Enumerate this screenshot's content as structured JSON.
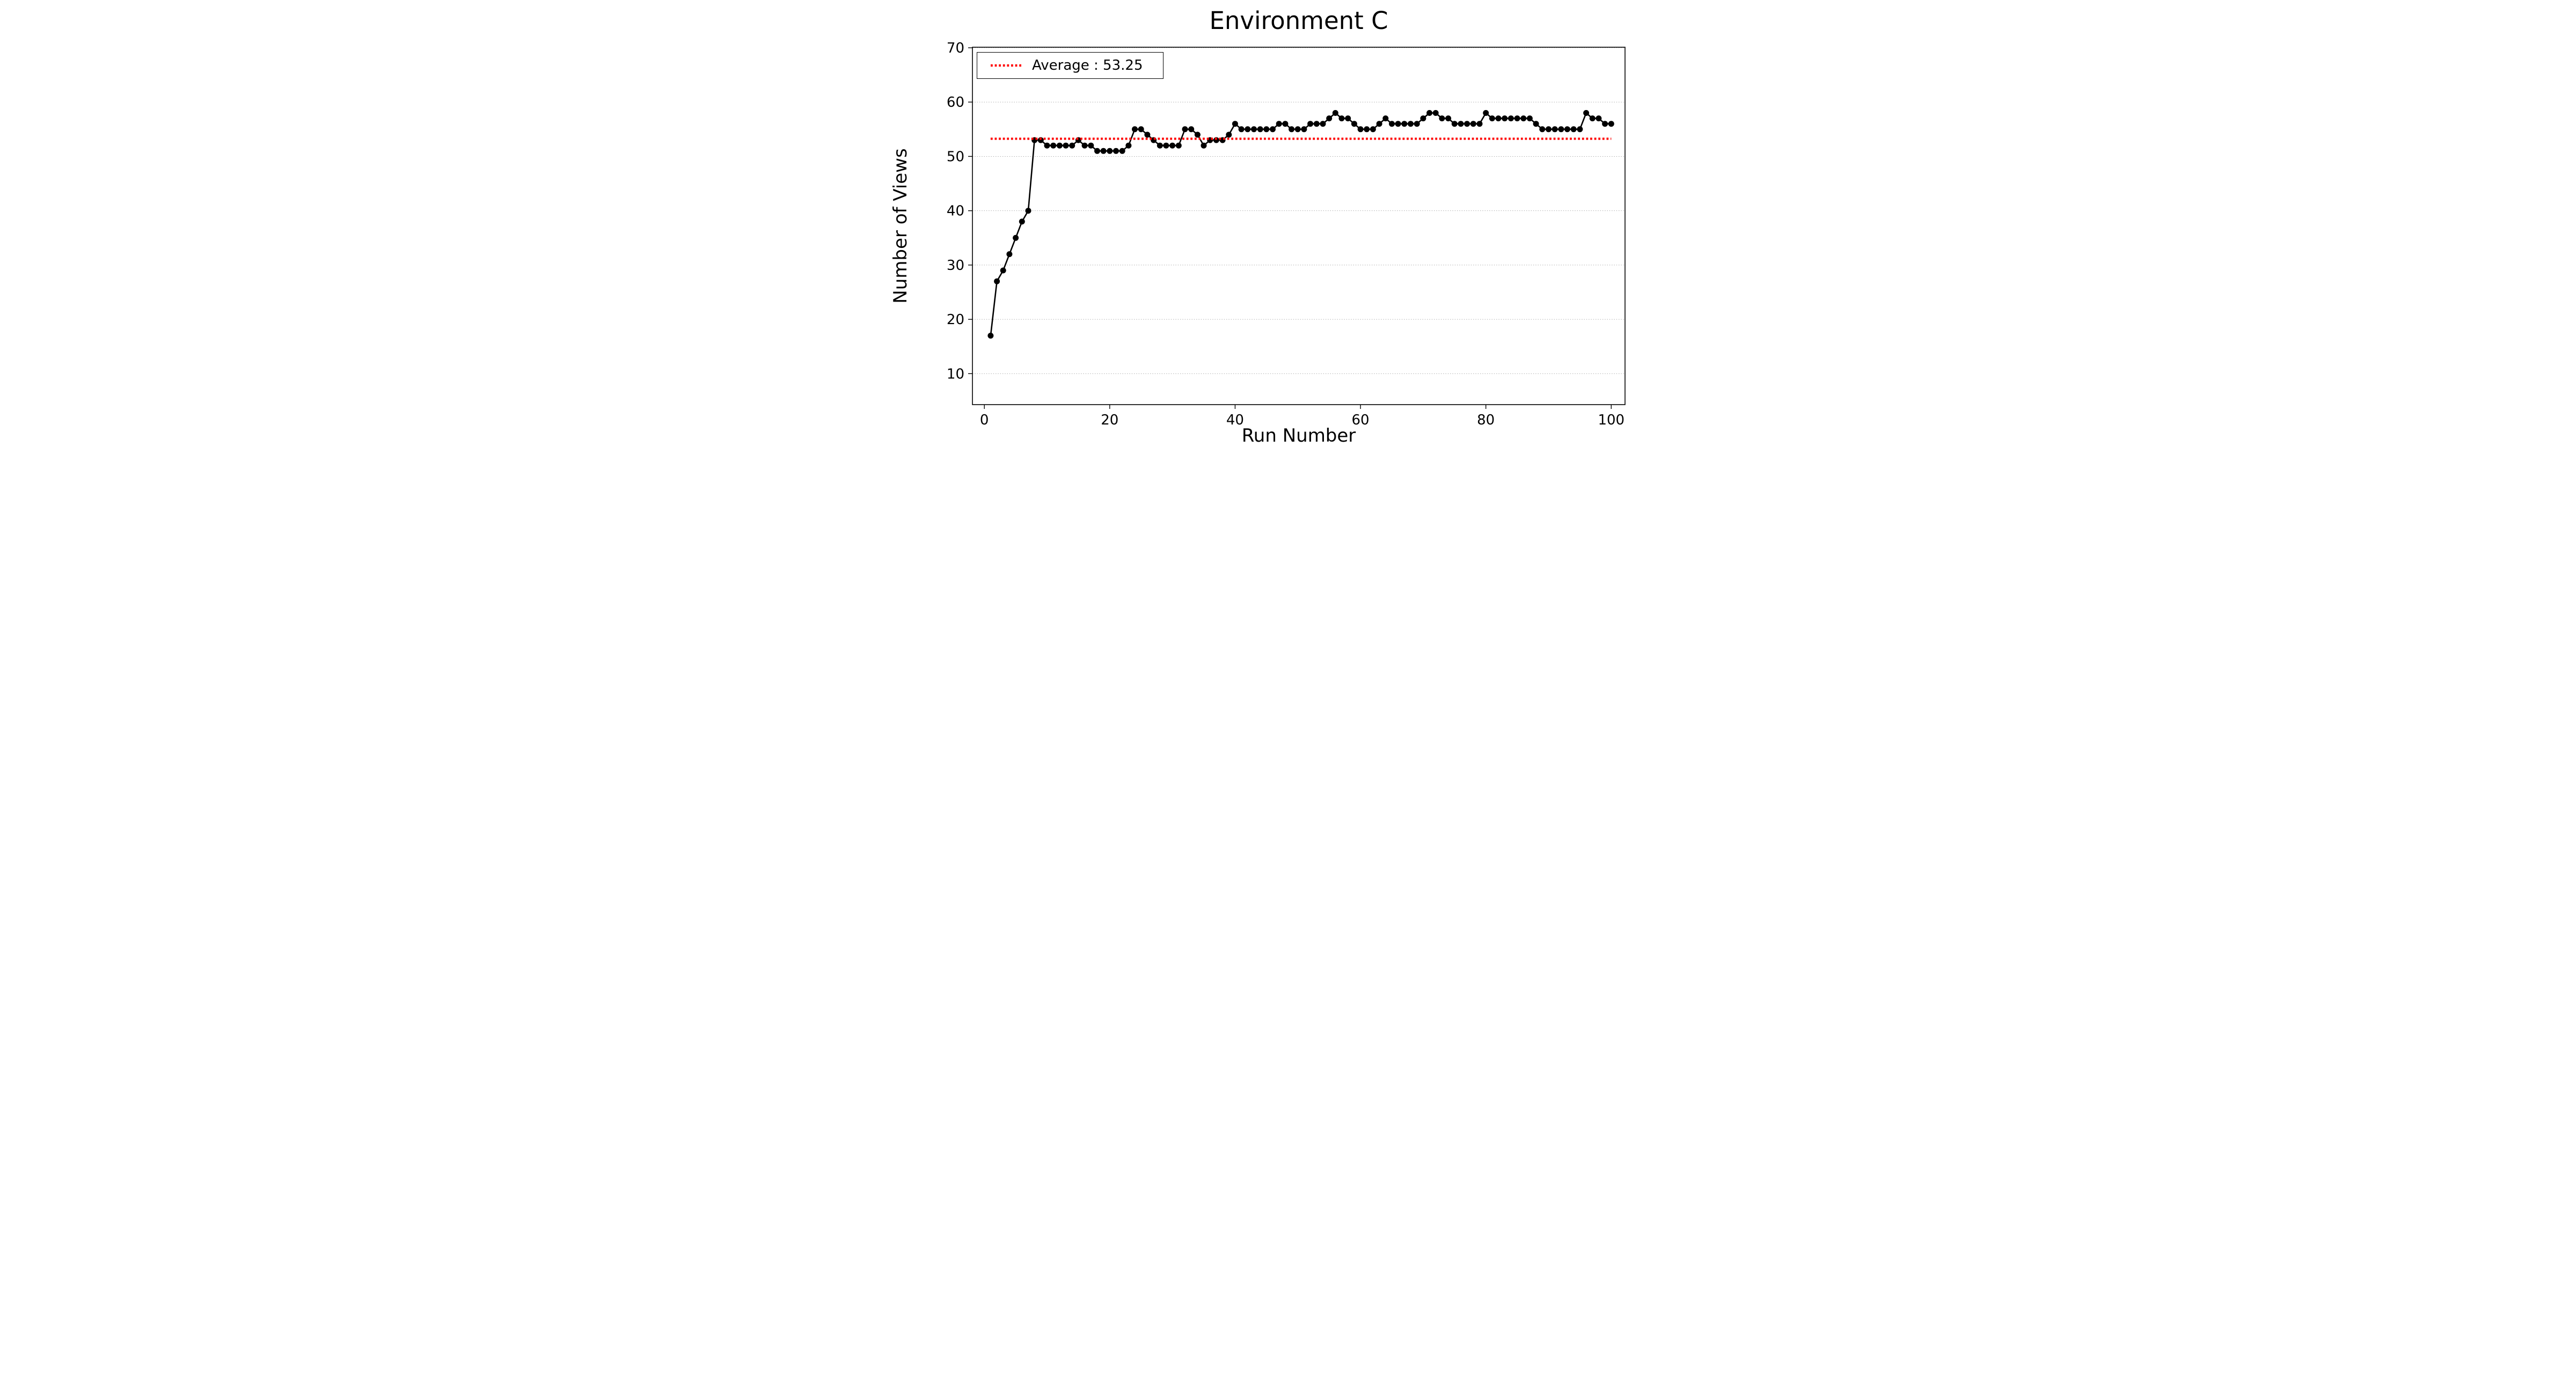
{
  "figure": {
    "title": "Environment C",
    "xlabel": "Run Number",
    "ylabel": "Number of Views"
  },
  "legend": {
    "label": "Average : 53.25",
    "position": "upper-left",
    "swatch": "red-dotted-line"
  },
  "colors": {
    "series": "#000000",
    "average": "#ff0000",
    "grid": "#aaaaaa",
    "spine": "#000000",
    "tick": "#000000",
    "background": "#ffffff"
  },
  "chart_data": {
    "type": "line",
    "title": "Environment C",
    "xlabel": "Run Number",
    "ylabel": "Number of Views",
    "x_ticks": [
      0,
      20,
      40,
      60,
      80,
      100
    ],
    "y_ticks": [
      10,
      20,
      30,
      40,
      50,
      60,
      70
    ],
    "xlim": [
      -1.9,
      102.2
    ],
    "ylim": [
      4.3,
      70.1
    ],
    "grid": "horizontal-dotted",
    "legend_position": "upper-left",
    "marker": "circle",
    "series": [
      {
        "name": "Number of Views",
        "color": "#000000",
        "x": [
          1,
          2,
          3,
          4,
          5,
          6,
          7,
          8,
          9,
          10,
          11,
          12,
          13,
          14,
          15,
          16,
          17,
          18,
          19,
          20,
          21,
          22,
          23,
          24,
          25,
          26,
          27,
          28,
          29,
          30,
          31,
          32,
          33,
          34,
          35,
          36,
          37,
          38,
          39,
          40,
          41,
          42,
          43,
          44,
          45,
          46,
          47,
          48,
          49,
          50,
          51,
          52,
          53,
          54,
          55,
          56,
          57,
          58,
          59,
          60,
          61,
          62,
          63,
          64,
          65,
          66,
          67,
          68,
          69,
          70,
          71,
          72,
          73,
          74,
          75,
          76,
          77,
          78,
          79,
          80,
          81,
          82,
          83,
          84,
          85,
          86,
          87,
          88,
          89,
          90,
          91,
          92,
          93,
          94,
          95,
          96,
          97,
          98,
          99,
          100
        ],
        "y": [
          17,
          27,
          29,
          32,
          35,
          38,
          40,
          53,
          53,
          52,
          52,
          52,
          52,
          52,
          53,
          52,
          52,
          51,
          51,
          51,
          51,
          51,
          52,
          55,
          55,
          54,
          53,
          52,
          52,
          52,
          52,
          55,
          55,
          54,
          52,
          53,
          53,
          53,
          54,
          56,
          55,
          55,
          55,
          55,
          55,
          55,
          56,
          56,
          55,
          55,
          55,
          56,
          56,
          56,
          57,
          58,
          57,
          57,
          56,
          55,
          55,
          55,
          56,
          57,
          56,
          56,
          56,
          56,
          56,
          57,
          58,
          58,
          57,
          57,
          56,
          56,
          56,
          56,
          56,
          58,
          57,
          57,
          57,
          57,
          57,
          57,
          57,
          56,
          55,
          55,
          55,
          55,
          55,
          55,
          55,
          58,
          57,
          57,
          56,
          56
        ]
      }
    ],
    "average_line": {
      "value": 53.25,
      "x_start": 1,
      "x_end": 100,
      "style": "dotted",
      "color": "#ff0000",
      "label": "Average : 53.25"
    }
  }
}
